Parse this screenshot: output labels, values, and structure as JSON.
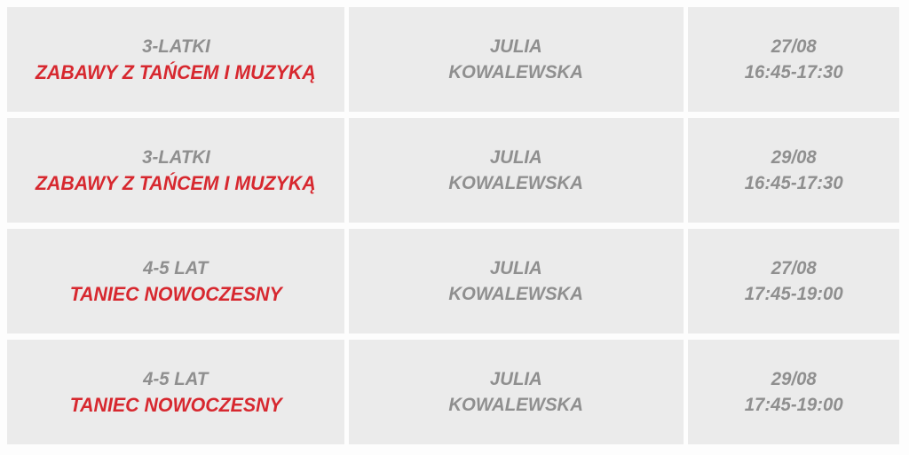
{
  "colors": {
    "accent": "#d7282f",
    "muted_text": "#8f8f8f",
    "cell_bg": "#ebebeb",
    "page_bg": "#fdfdfd"
  },
  "schedule": {
    "rows": [
      {
        "age_group": "3-LATKI",
        "class_name": "ZABAWY Z TAŃCEM I MUZYKĄ",
        "instructor_first_name": "JULIA",
        "instructor_last_name": "KOWALEWSKA",
        "date": "27/08",
        "time": "16:45-17:30"
      },
      {
        "age_group": "3-LATKI",
        "class_name": "ZABAWY Z TAŃCEM I MUZYKĄ",
        "instructor_first_name": "JULIA",
        "instructor_last_name": "KOWALEWSKA",
        "date": "29/08",
        "time": "16:45-17:30"
      },
      {
        "age_group": "4-5 LAT",
        "class_name": "TANIEC NOWOCZESNY",
        "instructor_first_name": "JULIA",
        "instructor_last_name": "KOWALEWSKA",
        "date": "27/08",
        "time": "17:45-19:00"
      },
      {
        "age_group": "4-5 LAT",
        "class_name": "TANIEC NOWOCZESNY",
        "instructor_first_name": "JULIA",
        "instructor_last_name": "KOWALEWSKA",
        "date": "29/08",
        "time": "17:45-19:00"
      }
    ]
  }
}
